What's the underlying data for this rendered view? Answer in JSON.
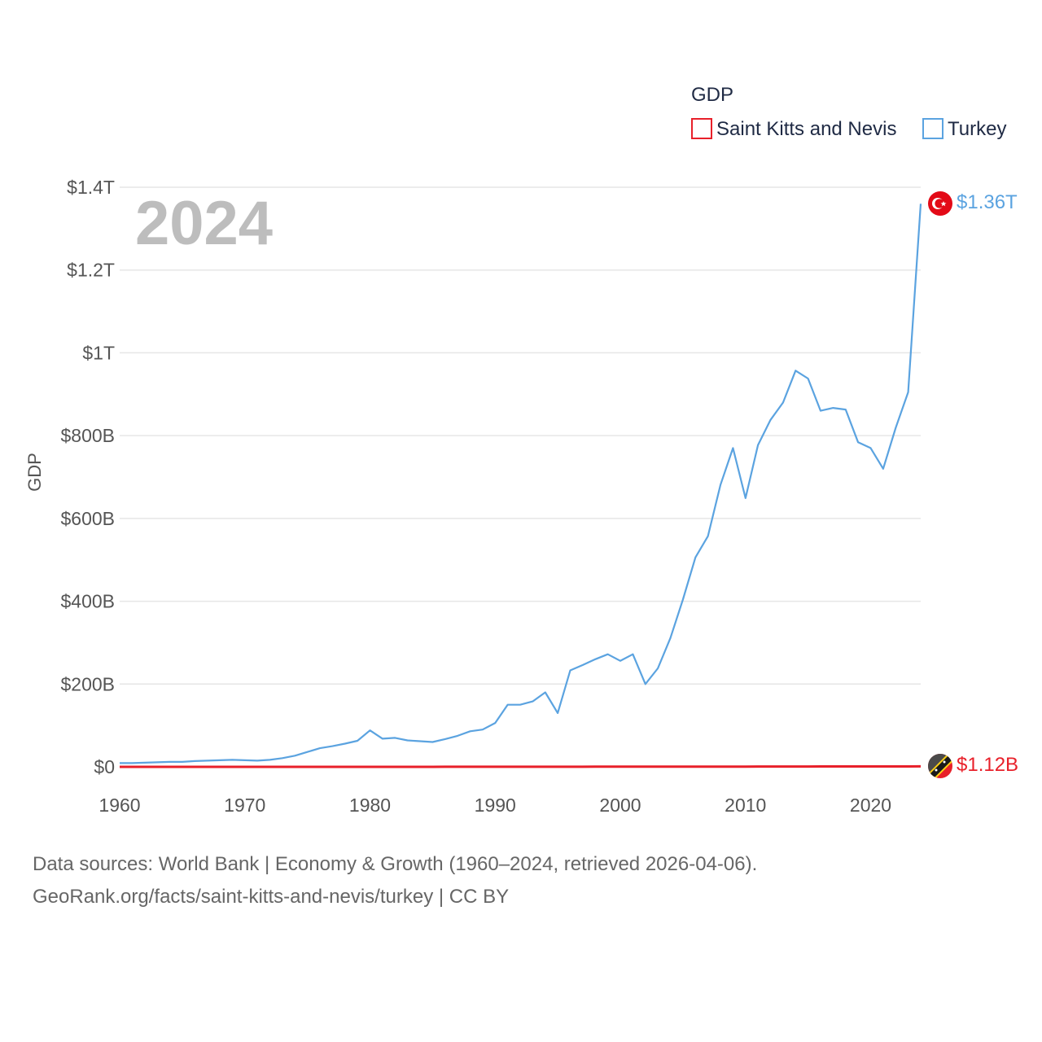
{
  "chart_data": {
    "type": "line",
    "title": "",
    "legend_title": "GDP",
    "legend_placement": "top-right",
    "ylabel": "GDP",
    "xlabel": "",
    "highlight_year": "2024",
    "xlim": [
      1960,
      2024
    ],
    "ylim": [
      0,
      1400
    ],
    "y_unit": "billion USD",
    "y_ticks": [
      0,
      200,
      400,
      600,
      800,
      1000,
      1200,
      1400
    ],
    "y_tick_labels": [
      "$0",
      "$200B",
      "$400B",
      "$600B",
      "$800B",
      "$1T",
      "$1.2T",
      "$1.4T"
    ],
    "x_ticks": [
      1960,
      1970,
      1980,
      1990,
      2000,
      2010,
      2020
    ],
    "x_tick_labels": [
      "1960",
      "1970",
      "1980",
      "1990",
      "2000",
      "2010",
      "2020"
    ],
    "grid": true,
    "series": [
      {
        "name": "Saint Kitts and Nevis",
        "color": "#e8202a",
        "start_year": 1960,
        "end_label": "$1.12B",
        "flag_icon": "saint-kitts-and-nevis-flag-icon",
        "values": [
          0.01,
          0.01,
          0.01,
          0.01,
          0.01,
          0.01,
          0.02,
          0.02,
          0.02,
          0.02,
          0.02,
          0.02,
          0.02,
          0.03,
          0.03,
          0.04,
          0.04,
          0.04,
          0.05,
          0.05,
          0.06,
          0.07,
          0.07,
          0.08,
          0.08,
          0.09,
          0.1,
          0.12,
          0.13,
          0.15,
          0.16,
          0.17,
          0.18,
          0.2,
          0.22,
          0.24,
          0.25,
          0.28,
          0.3,
          0.32,
          0.34,
          0.36,
          0.37,
          0.38,
          0.4,
          0.45,
          0.49,
          0.55,
          0.63,
          0.67,
          0.68,
          0.76,
          0.75,
          0.76,
          0.83,
          0.88,
          0.94,
          0.99,
          1.05,
          1.05,
          0.91,
          0.97,
          1.04,
          1.08,
          1.12
        ]
      },
      {
        "name": "Turkey",
        "color": "#5ba3e0",
        "start_year": 1960,
        "end_label": "$1.36T",
        "flag_icon": "turkey-flag-icon",
        "values": [
          9,
          9,
          10,
          11,
          12,
          12,
          14,
          15,
          16,
          17,
          16,
          15,
          17,
          21,
          27,
          36,
          45,
          50,
          56,
          63,
          88,
          68,
          70,
          64,
          62,
          60,
          67,
          75,
          86,
          90,
          106,
          150,
          150,
          158,
          180,
          130,
          233,
          246,
          260,
          272,
          256,
          272,
          200,
          238,
          311,
          404,
          506,
          557,
          681,
          770,
          649,
          777,
          838,
          880,
          957,
          938,
          860,
          867,
          863,
          784,
          770,
          720,
          819,
          905,
          1360
        ]
      }
    ]
  },
  "footer": {
    "line1": "Data sources: World Bank | Economy & Growth (1960–2024, retrieved 2026-04-06).",
    "line2": "GeoRank.org/facts/saint-kitts-and-nevis/turkey | CC BY"
  }
}
